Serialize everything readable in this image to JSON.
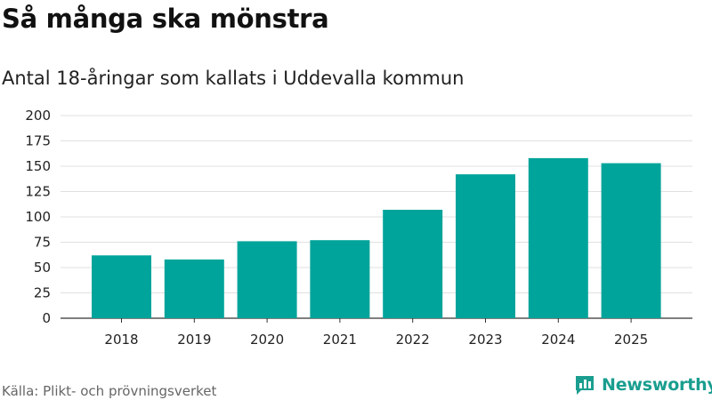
{
  "header": {
    "title": "Så många ska mönstra",
    "subtitle": "Antal 18-åringar som kallats i Uddevalla kommun"
  },
  "footer": {
    "source": "Källa: Plikt- och prövningsverket",
    "brand": "Newsworthy"
  },
  "colors": {
    "bar": "#00a49a",
    "grid": "#e0e0e0",
    "brand": "#1a9e8f"
  },
  "chart_data": {
    "type": "bar",
    "title": "Så många ska mönstra",
    "subtitle": "Antal 18-åringar som kallats i Uddevalla kommun",
    "xlabel": "",
    "ylabel": "",
    "categories": [
      "2018",
      "2019",
      "2020",
      "2021",
      "2022",
      "2023",
      "2024",
      "2025"
    ],
    "values": [
      62,
      58,
      76,
      77,
      107,
      142,
      158,
      153
    ],
    "ylim": [
      0,
      200
    ],
    "yticks": [
      0,
      25,
      50,
      75,
      100,
      125,
      150,
      175,
      200
    ],
    "grid": true,
    "legend": "none"
  }
}
